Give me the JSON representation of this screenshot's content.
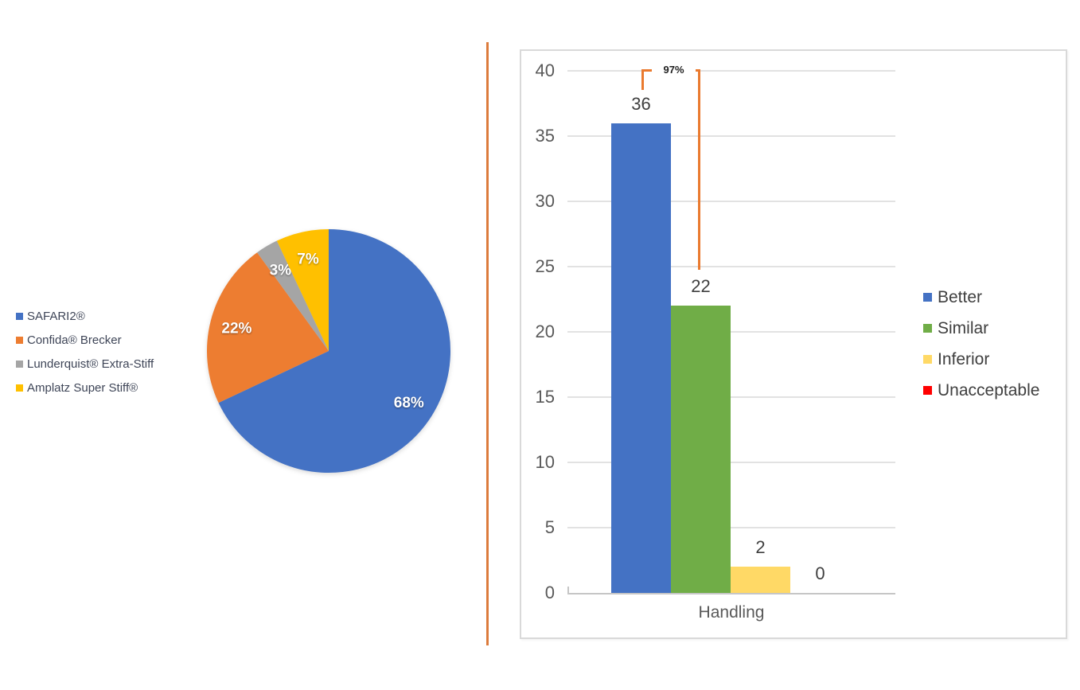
{
  "figure": {
    "background": "#FFFFFF",
    "divider_color": "#DC7B3C"
  },
  "chart_data": [
    {
      "type": "pie",
      "name": "guidewire-share-pie",
      "labels": [
        "SAFARI2®",
        "Confida® Brecker",
        "Lunderquist® Extra-Stiff",
        "Amplatz Super Stiff®"
      ],
      "values": [
        68,
        22,
        3,
        7
      ],
      "data_labels": [
        "68%",
        "22%",
        "3%",
        "7%"
      ],
      "colors": [
        "#4472C4",
        "#ED7D31",
        "#A5A5A5",
        "#FFC000"
      ],
      "start_angle_deg": 0,
      "direction": "clockwise",
      "legend_position": "left",
      "legend_text_color": "#3E4557"
    },
    {
      "type": "bar",
      "name": "handling-rating-bar",
      "categories": [
        "Handling"
      ],
      "xlabel": "Handling",
      "ylabel": "",
      "ylim": [
        0,
        40
      ],
      "yticks": [
        0,
        5,
        10,
        15,
        20,
        25,
        30,
        35,
        40
      ],
      "grid": true,
      "legend_position": "right",
      "series": [
        {
          "name": "Better",
          "values": [
            36
          ],
          "color": "#4472C4"
        },
        {
          "name": "Similar",
          "values": [
            22
          ],
          "color": "#70AD47"
        },
        {
          "name": "Inferior",
          "values": [
            2
          ],
          "color": "#FFD966"
        },
        {
          "name": "Unacceptable",
          "values": [
            0
          ],
          "color": "#FF0000"
        }
      ],
      "data_labels": [
        "36",
        "22",
        "2",
        "0"
      ],
      "annotation": {
        "label": "97%",
        "between": [
          "Better",
          "Similar"
        ],
        "color": "#EA7A2F"
      }
    }
  ]
}
